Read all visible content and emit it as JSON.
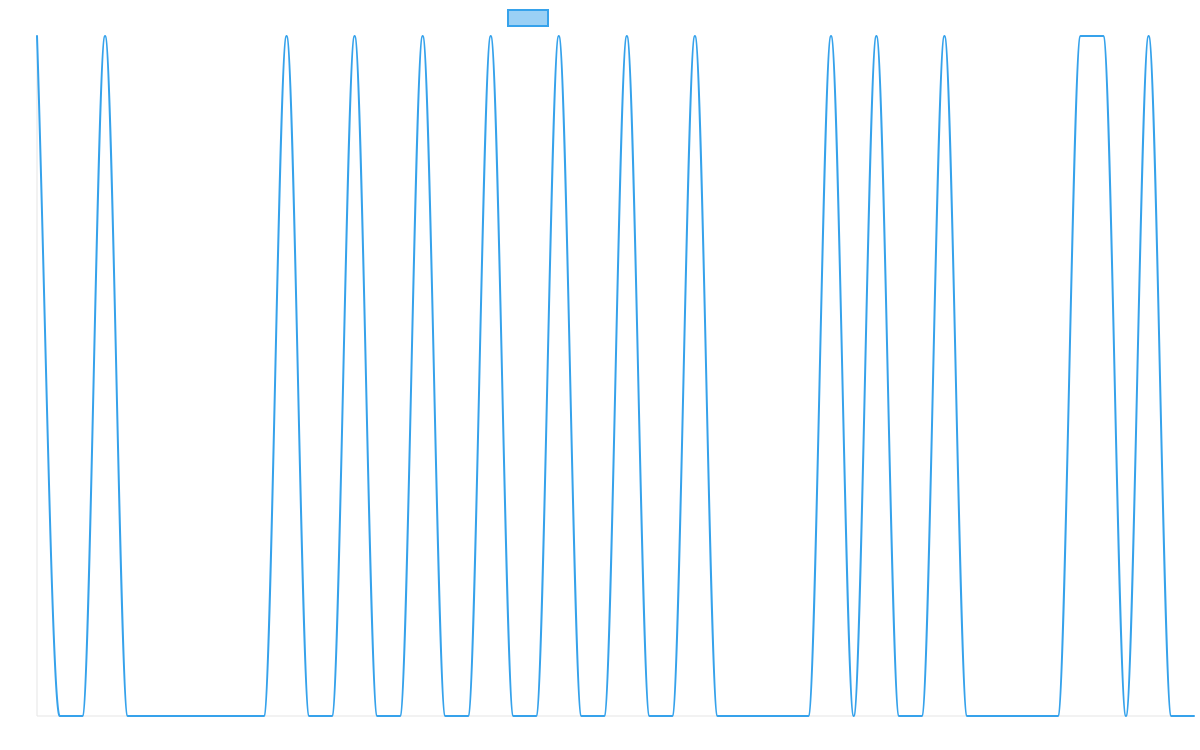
{
  "chart_data": {
    "type": "line",
    "title": "",
    "xlabel": "",
    "ylabel": "",
    "grid": false,
    "legend_position": "top",
    "series": [
      {
        "name": "",
        "color": "#36a2eb",
        "fill_color": "#9ad0f5",
        "x": [
          0,
          1,
          2,
          3,
          4,
          5,
          6,
          7,
          8,
          9,
          10,
          11,
          12,
          13,
          14,
          15,
          16,
          17,
          18,
          19,
          20,
          21,
          22,
          23,
          24,
          25,
          26,
          27,
          28,
          29,
          30,
          31,
          32,
          33,
          34,
          35,
          36,
          37,
          38,
          39,
          40,
          41,
          42,
          43,
          44,
          45,
          46,
          47,
          48,
          49,
          50,
          51
        ],
        "values": [
          1,
          0,
          0,
          1,
          0,
          0,
          0,
          0,
          0,
          0,
          0,
          1,
          0,
          0,
          1,
          0,
          0,
          1,
          0,
          0,
          1,
          0,
          0,
          1,
          0,
          0,
          1,
          0,
          0,
          1,
          0,
          0,
          0,
          0,
          0,
          1,
          0,
          1,
          0,
          0,
          1,
          0,
          0,
          0,
          0,
          0,
          1,
          1,
          0,
          1,
          0,
          0
        ]
      }
    ],
    "xlim": [
      0,
      51
    ],
    "ylim": [
      0,
      1
    ]
  }
}
